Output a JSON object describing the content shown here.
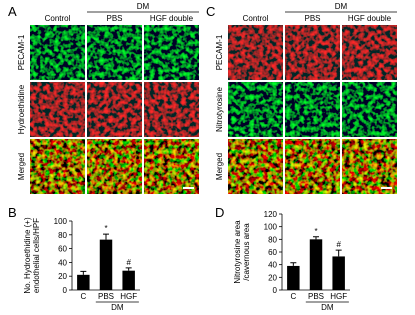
{
  "panels": [
    {
      "label": "A",
      "group": "DM",
      "columns": [
        "Control",
        "PBS",
        "HGF double"
      ],
      "rows": [
        "PECAM-1",
        "Hydroethidine",
        "Merged"
      ],
      "row_colors": [
        "green",
        "red",
        "merged"
      ]
    },
    {
      "label": "C",
      "group": "DM",
      "columns": [
        "Control",
        "PBS",
        "HGF double"
      ],
      "rows": [
        "PECAM-1",
        "Nitrotyrosine",
        "Merged"
      ],
      "row_colors": [
        "red",
        "green",
        "merged"
      ]
    }
  ],
  "chart_data": [
    {
      "type": "bar",
      "label": "B",
      "ylabel": [
        "No. Hydroethidine (+)",
        "endothelial cells/HPF"
      ],
      "categories": [
        "C",
        "PBS",
        "HGF"
      ],
      "values": [
        22,
        73,
        28
      ],
      "errors": [
        5,
        8,
        4
      ],
      "color": "#000000",
      "group": {
        "label": "DM",
        "categories": [
          "PBS",
          "HGF"
        ]
      },
      "annotations": [
        {
          "category": "PBS",
          "text": "*"
        },
        {
          "category": "HGF",
          "text": "#"
        }
      ],
      "ylim": [
        0,
        100
      ],
      "yticks": [
        0,
        20,
        40,
        60,
        80,
        100
      ]
    },
    {
      "type": "bar",
      "label": "D",
      "ylabel": [
        "Nitrotyrosine area",
        "/cavernous area"
      ],
      "categories": [
        "C",
        "PBS",
        "HGF"
      ],
      "values": [
        38,
        80,
        53
      ],
      "errors": [
        5,
        4,
        10
      ],
      "color": "#000000",
      "group": {
        "label": "DM",
        "categories": [
          "PBS",
          "HGF"
        ]
      },
      "annotations": [
        {
          "category": "PBS",
          "text": "*"
        },
        {
          "category": "HGF",
          "text": "#"
        }
      ],
      "ylim": [
        0,
        120
      ],
      "yticks": [
        0,
        20,
        40,
        60,
        80,
        100,
        120
      ]
    }
  ]
}
